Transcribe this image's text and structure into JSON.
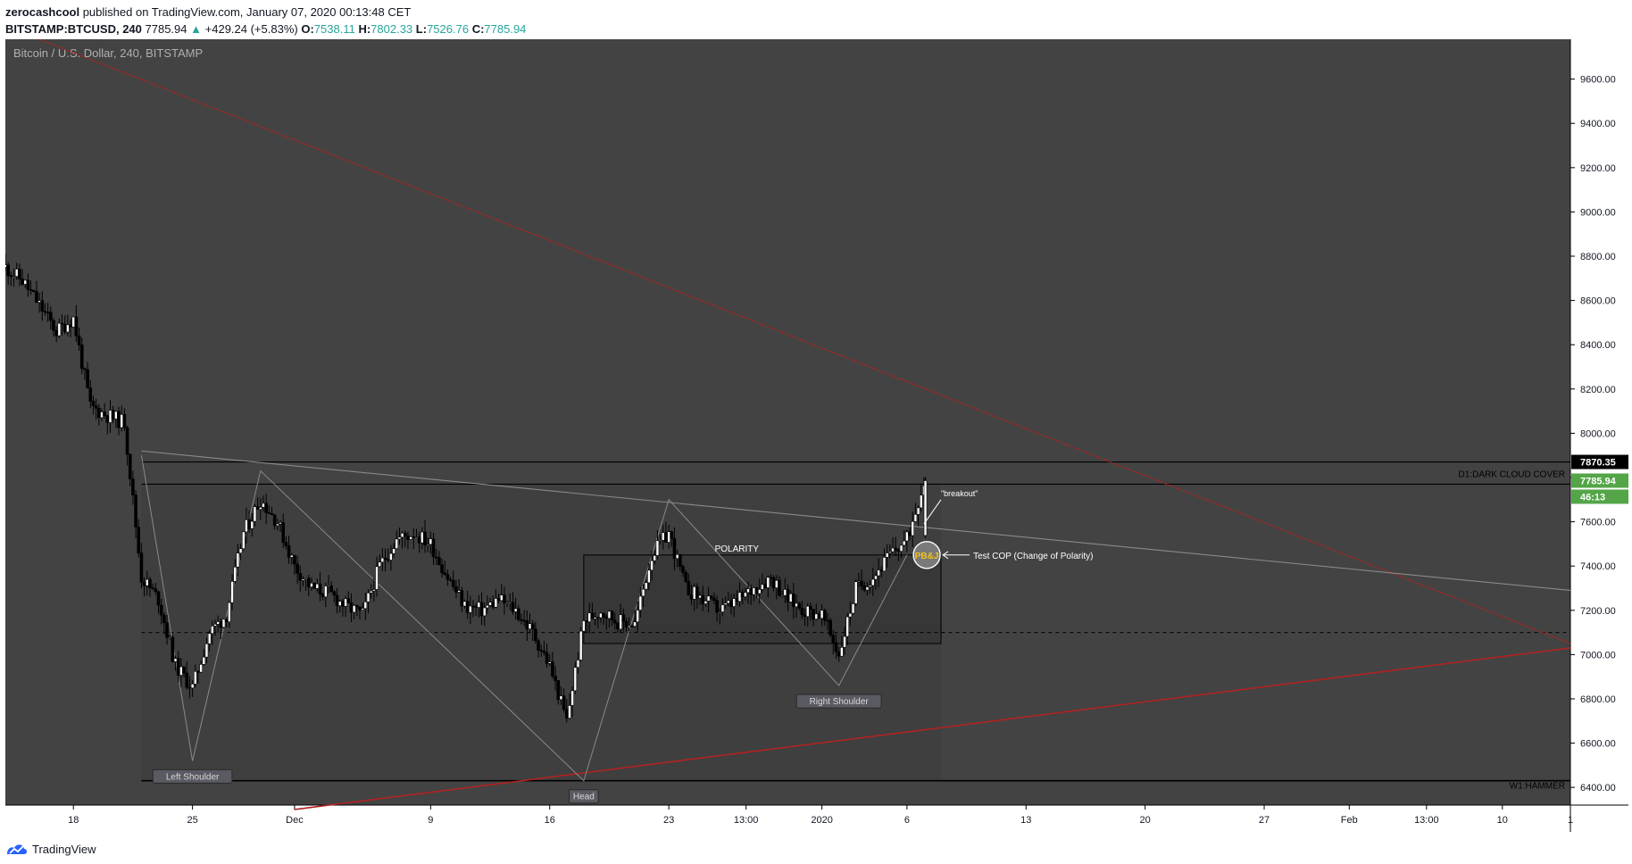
{
  "header": {
    "author": "zerocashcool",
    "published_text": " published on TradingView.com, January 07, 2020 00:13:48 CET",
    "symbol": "BITSTAMP:BTCUSD, 240",
    "last": "7785.94",
    "arrow": "▲",
    "change": "+429.24 (+5.83%)",
    "o_label": "O:",
    "o_value": "7538.11",
    "h_label": "H:",
    "h_value": "7802.33",
    "l_label": "L:",
    "l_value": "7526.76",
    "c_label": "C:",
    "c_value": "7785.94"
  },
  "footer": {
    "brand": "TradingView"
  },
  "chart_data": {
    "type": "candlestick",
    "title": "Bitcoin / U.S. Dollar, 240, BITSTAMP",
    "interval": "240",
    "ylim": [
      6320,
      9780
    ],
    "yticks": [
      6400,
      6600,
      6800,
      7000,
      7200,
      7400,
      7600,
      7800,
      8000,
      8200,
      8400,
      8600,
      8800,
      9000,
      9200,
      9400,
      9600
    ],
    "ytick_labels": [
      "6400.00",
      "6600.00",
      "6800.00",
      "7000.00",
      "7200.00",
      "7400.00",
      "7600.00",
      "7800.00",
      "8000.00",
      "8200.00",
      "8400.00",
      "8600.00",
      "8800.00",
      "9000.00",
      "9200.00",
      "9400.00",
      "9600.00"
    ],
    "xlim": [
      "2019-11-14",
      "2020-02-14"
    ],
    "x_ticks": [
      {
        "date": "2019-11-18",
        "label": "18"
      },
      {
        "date": "2019-11-25",
        "label": "25"
      },
      {
        "date": "2019-12-01",
        "label": "Dec"
      },
      {
        "date": "2019-12-09",
        "label": "9"
      },
      {
        "date": "2019-12-16",
        "label": "16"
      },
      {
        "date": "2019-12-23",
        "label": "23"
      },
      {
        "date": "2019-12-27T13:00",
        "label": "13:00"
      },
      {
        "date": "2020-01-01",
        "label": "2020"
      },
      {
        "date": "2020-01-06",
        "label": "6"
      },
      {
        "date": "2020-01-13",
        "label": "13"
      },
      {
        "date": "2020-01-20",
        "label": "20"
      },
      {
        "date": "2020-01-27",
        "label": "27"
      },
      {
        "date": "2020-02-01",
        "label": "Feb"
      },
      {
        "date": "2020-02-05T13:00",
        "label": "13:00"
      },
      {
        "date": "2020-02-10",
        "label": "10"
      },
      {
        "date": "2020-02-14",
        "label": "1"
      }
    ],
    "price_path": [
      [
        "2019-11-14",
        8750
      ],
      [
        "2019-11-15",
        8690
      ],
      [
        "2019-11-16",
        8580
      ],
      [
        "2019-11-17",
        8460
      ],
      [
        "2019-11-18",
        8520
      ],
      [
        "2019-11-19",
        8120
      ],
      [
        "2019-11-20",
        8080
      ],
      [
        "2019-11-21",
        8050
      ],
      [
        "2019-11-22",
        7350
      ],
      [
        "2019-11-23",
        7250
      ],
      [
        "2019-11-24",
        6950
      ],
      [
        "2019-11-25",
        6850
      ],
      [
        "2019-11-26",
        7100
      ],
      [
        "2019-11-27",
        7180
      ],
      [
        "2019-11-28",
        7550
      ],
      [
        "2019-11-29",
        7700
      ],
      [
        "2019-11-30",
        7600
      ],
      [
        "2019-12-01",
        7400
      ],
      [
        "2019-12-02",
        7300
      ],
      [
        "2019-12-03",
        7280
      ],
      [
        "2019-12-04",
        7220
      ],
      [
        "2019-12-05",
        7180
      ],
      [
        "2019-12-06",
        7400
      ],
      [
        "2019-12-07",
        7520
      ],
      [
        "2019-12-08",
        7550
      ],
      [
        "2019-12-09",
        7500
      ],
      [
        "2019-12-10",
        7350
      ],
      [
        "2019-12-11",
        7220
      ],
      [
        "2019-12-12",
        7200
      ],
      [
        "2019-12-13",
        7250
      ],
      [
        "2019-12-14",
        7200
      ],
      [
        "2019-12-15",
        7100
      ],
      [
        "2019-12-16",
        6950
      ],
      [
        "2019-12-17",
        6700
      ],
      [
        "2019-12-18",
        7150
      ],
      [
        "2019-12-19",
        7200
      ],
      [
        "2019-12-20",
        7150
      ],
      [
        "2019-12-21",
        7140
      ],
      [
        "2019-12-22",
        7450
      ],
      [
        "2019-12-23",
        7550
      ],
      [
        "2019-12-24",
        7300
      ],
      [
        "2019-12-25",
        7250
      ],
      [
        "2019-12-26",
        7200
      ],
      [
        "2019-12-27",
        7240
      ],
      [
        "2019-12-28",
        7300
      ],
      [
        "2019-12-29",
        7350
      ],
      [
        "2019-12-30",
        7250
      ],
      [
        "2019-12-31",
        7200
      ],
      [
        "2020-01-01",
        7180
      ],
      [
        "2020-01-02",
        7000
      ],
      [
        "2020-01-03",
        7300
      ],
      [
        "2020-01-04",
        7350
      ],
      [
        "2020-01-05",
        7450
      ],
      [
        "2020-01-06",
        7520
      ],
      [
        "2020-01-07",
        7785.94
      ]
    ],
    "horizontal_levels": [
      {
        "price": 7870.35,
        "label": "D1:DARK CLOUD COVER",
        "badge": "7870.35"
      },
      {
        "price": 7785.94,
        "label": "",
        "badge": "7785.94"
      },
      {
        "price": 6430,
        "label": "W1:HAMMER"
      }
    ],
    "price_badges": {
      "last": "7785.94",
      "countdown": "46:13",
      "level": "7870.35"
    },
    "pattern_points": [
      {
        "label": "Left Shoulder",
        "date": "2019-11-25",
        "price": 6520
      },
      {
        "label": "Head",
        "date": "2019-12-18",
        "price": 6430
      },
      {
        "label": "Right Shoulder",
        "date": "2020-01-02",
        "price": 6860
      }
    ],
    "annotations": [
      {
        "text": "POLARITY"
      },
      {
        "text": "\"breakout\""
      },
      {
        "text": "Test COP (Change of Polarity)"
      },
      {
        "text": "PB&J"
      }
    ],
    "colors": {
      "background": "#434343",
      "candle": "#000000",
      "trendline_red": "#b22222",
      "neckline": "#8a8a8a",
      "level_line": "#000000",
      "last_price_badge": "#53a548",
      "pbj_text": "#f2c21f",
      "axis_text": "#b0b0b0"
    }
  }
}
